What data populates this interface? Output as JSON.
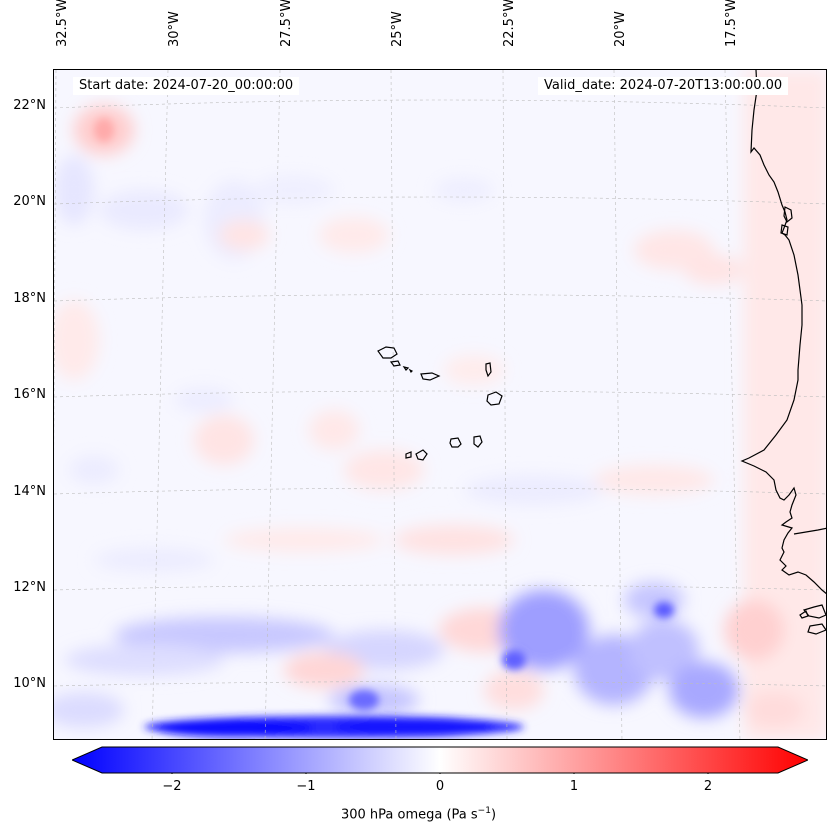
{
  "map": {
    "start_label": "Start date: 2024-07-20_00:00:00",
    "valid_label": "Valid_date: 2024-07-20T13:00:00.00",
    "lon_ticks": [
      "32.5°W",
      "30°W",
      "27.5°W",
      "25°W",
      "22.5°W",
      "20°W",
      "17.5°W"
    ],
    "lat_ticks": [
      "22°N",
      "20°N",
      "18°N",
      "16°N",
      "14°N",
      "12°N",
      "10°N"
    ],
    "region": "Cape Verde Islands and West African coast"
  },
  "colorbar": {
    "ticks": [
      "−2",
      "−1",
      "0",
      "1",
      "2"
    ],
    "label_main": "300 hPa omega (Pa s",
    "label_sup": "−1",
    "label_end": ")",
    "min": -2.5,
    "max": 2.5,
    "cmap": "bwr",
    "colors": {
      "low": "#0000ff",
      "mid": "#ffffff",
      "high": "#ff0000"
    }
  }
}
